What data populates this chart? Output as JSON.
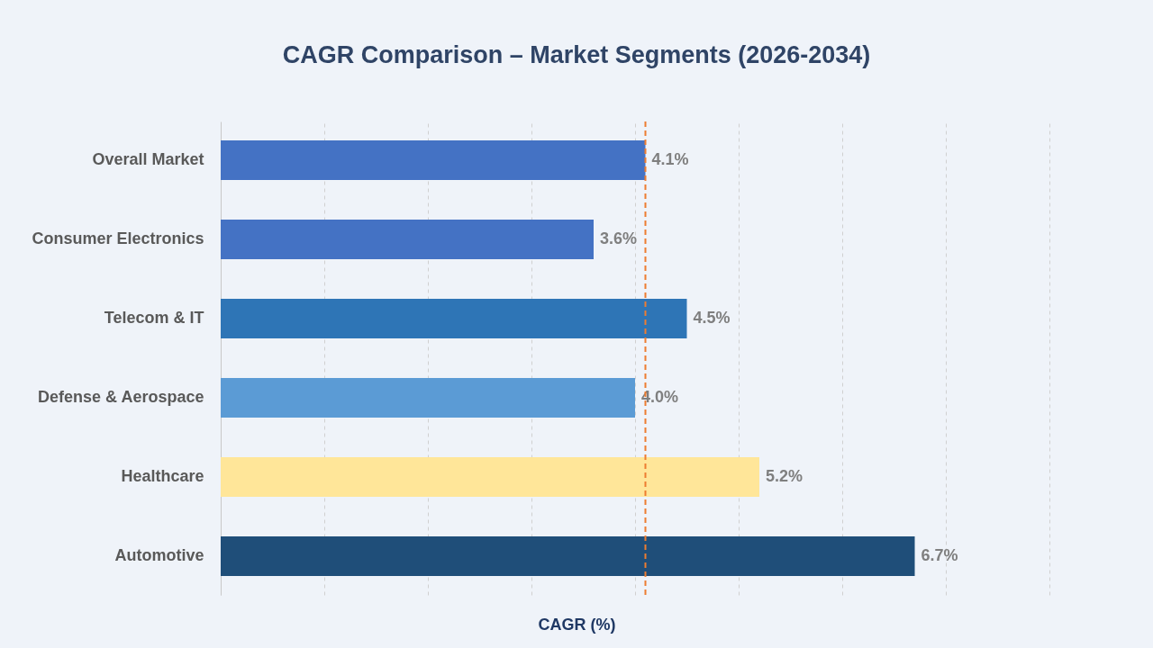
{
  "chart_data": {
    "type": "bar",
    "orientation": "horizontal",
    "title": "CAGR Comparison – Market Segments (2026-2034)",
    "xlabel": "CAGR (%)",
    "categories": [
      "Overall Market",
      "Consumer Electronics",
      "Telecom & IT",
      "Defense & Aerospace",
      "Healthcare",
      "Automotive"
    ],
    "values": [
      4.1,
      3.6,
      4.5,
      4.0,
      5.2,
      6.7
    ],
    "colors": [
      "#4472c4",
      "#4472c4",
      "#2e75b6",
      "#5b9bd5",
      "#ffe699",
      "#1f4e79"
    ],
    "value_labels": [
      "4.1%",
      "3.6%",
      "4.5%",
      "4.0%",
      "5.2%",
      "6.7%"
    ],
    "xlim": [
      0,
      8
    ],
    "xticks": [
      {
        "value": 0,
        "label": null
      },
      {
        "value": 1,
        "label": null
      },
      {
        "value": 2,
        "label": null
      },
      {
        "value": 3,
        "label": null
      },
      {
        "value": 4,
        "label": null
      },
      {
        "value": 5,
        "label": null
      },
      {
        "value": 6,
        "label": null
      },
      {
        "value": 7,
        "label": null
      },
      {
        "value": 8,
        "label": null
      }
    ],
    "ref_lines": [
      {
        "axis": "x",
        "value": 4.1,
        "color": "#ed7d31",
        "line_style": "dashed"
      }
    ],
    "grid": "x",
    "tick_labels": "y"
  }
}
